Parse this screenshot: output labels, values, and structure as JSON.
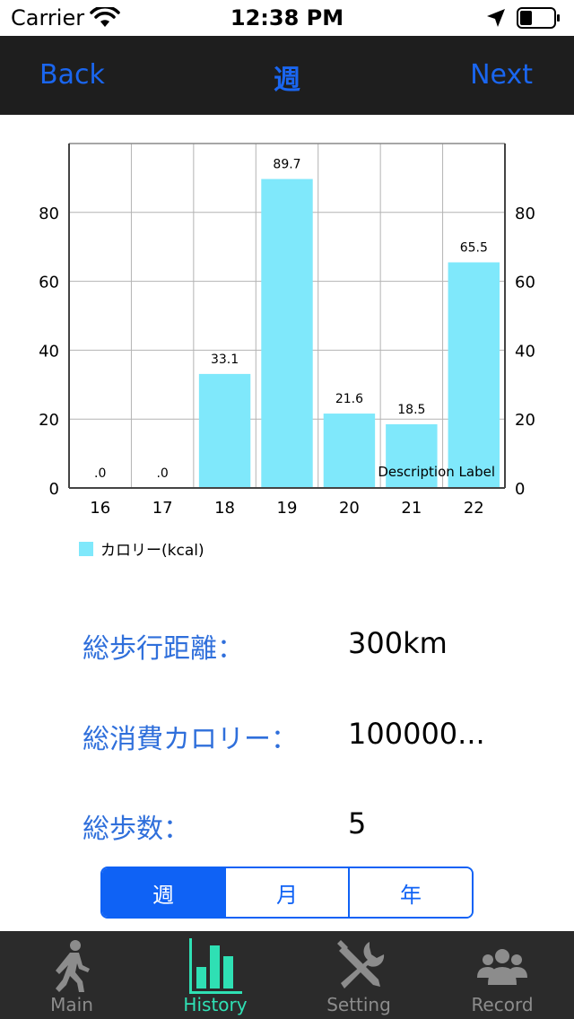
{
  "status_bar": {
    "carrier": "Carrier",
    "time": "12:38 PM"
  },
  "nav": {
    "back_label": "Back",
    "title": "週",
    "next_label": "Next"
  },
  "chart_data": {
    "type": "bar",
    "categories": [
      "16",
      "17",
      "18",
      "19",
      "20",
      "21",
      "22"
    ],
    "series": [
      {
        "name": "カロリー(kcal)",
        "values": [
          0,
          0,
          33.1,
          89.7,
          21.6,
          18.5,
          65.5
        ],
        "color": "#7fe8fb"
      }
    ],
    "value_labels": [
      ".0",
      ".0",
      "33.1",
      "89.7",
      "21.6",
      "18.5",
      "65.5"
    ],
    "ylim": [
      0,
      100
    ],
    "yticks": [
      "0",
      "20",
      "40",
      "60",
      "80"
    ],
    "grid": true,
    "dual_y_axis": true,
    "description": "Description Label",
    "legend_position": "bottom-left"
  },
  "stats": [
    {
      "label": "総歩行距離：",
      "value": "300km"
    },
    {
      "label": "総消費カロリー：",
      "value": "100000..."
    },
    {
      "label": "総歩数：",
      "value": "5"
    }
  ],
  "segments": [
    {
      "label": "週",
      "selected": true
    },
    {
      "label": "月",
      "selected": false
    },
    {
      "label": "年",
      "selected": false
    }
  ],
  "tabs": [
    {
      "label": "Main",
      "icon": "walking-person-icon",
      "active": false
    },
    {
      "label": "History",
      "icon": "bar-chart-icon",
      "active": true
    },
    {
      "label": "Setting",
      "icon": "wrench-screwdriver-icon",
      "active": false
    },
    {
      "label": "Record",
      "icon": "group-people-icon",
      "active": false
    }
  ],
  "colors": {
    "accent": "#0f62f5",
    "nav_bg": "#1e1e1e",
    "tab_bg": "#2b2b2b",
    "tab_active": "#2fe0b4",
    "bar": "#7fe8fb",
    "label_blue": "#2f6fdb"
  }
}
